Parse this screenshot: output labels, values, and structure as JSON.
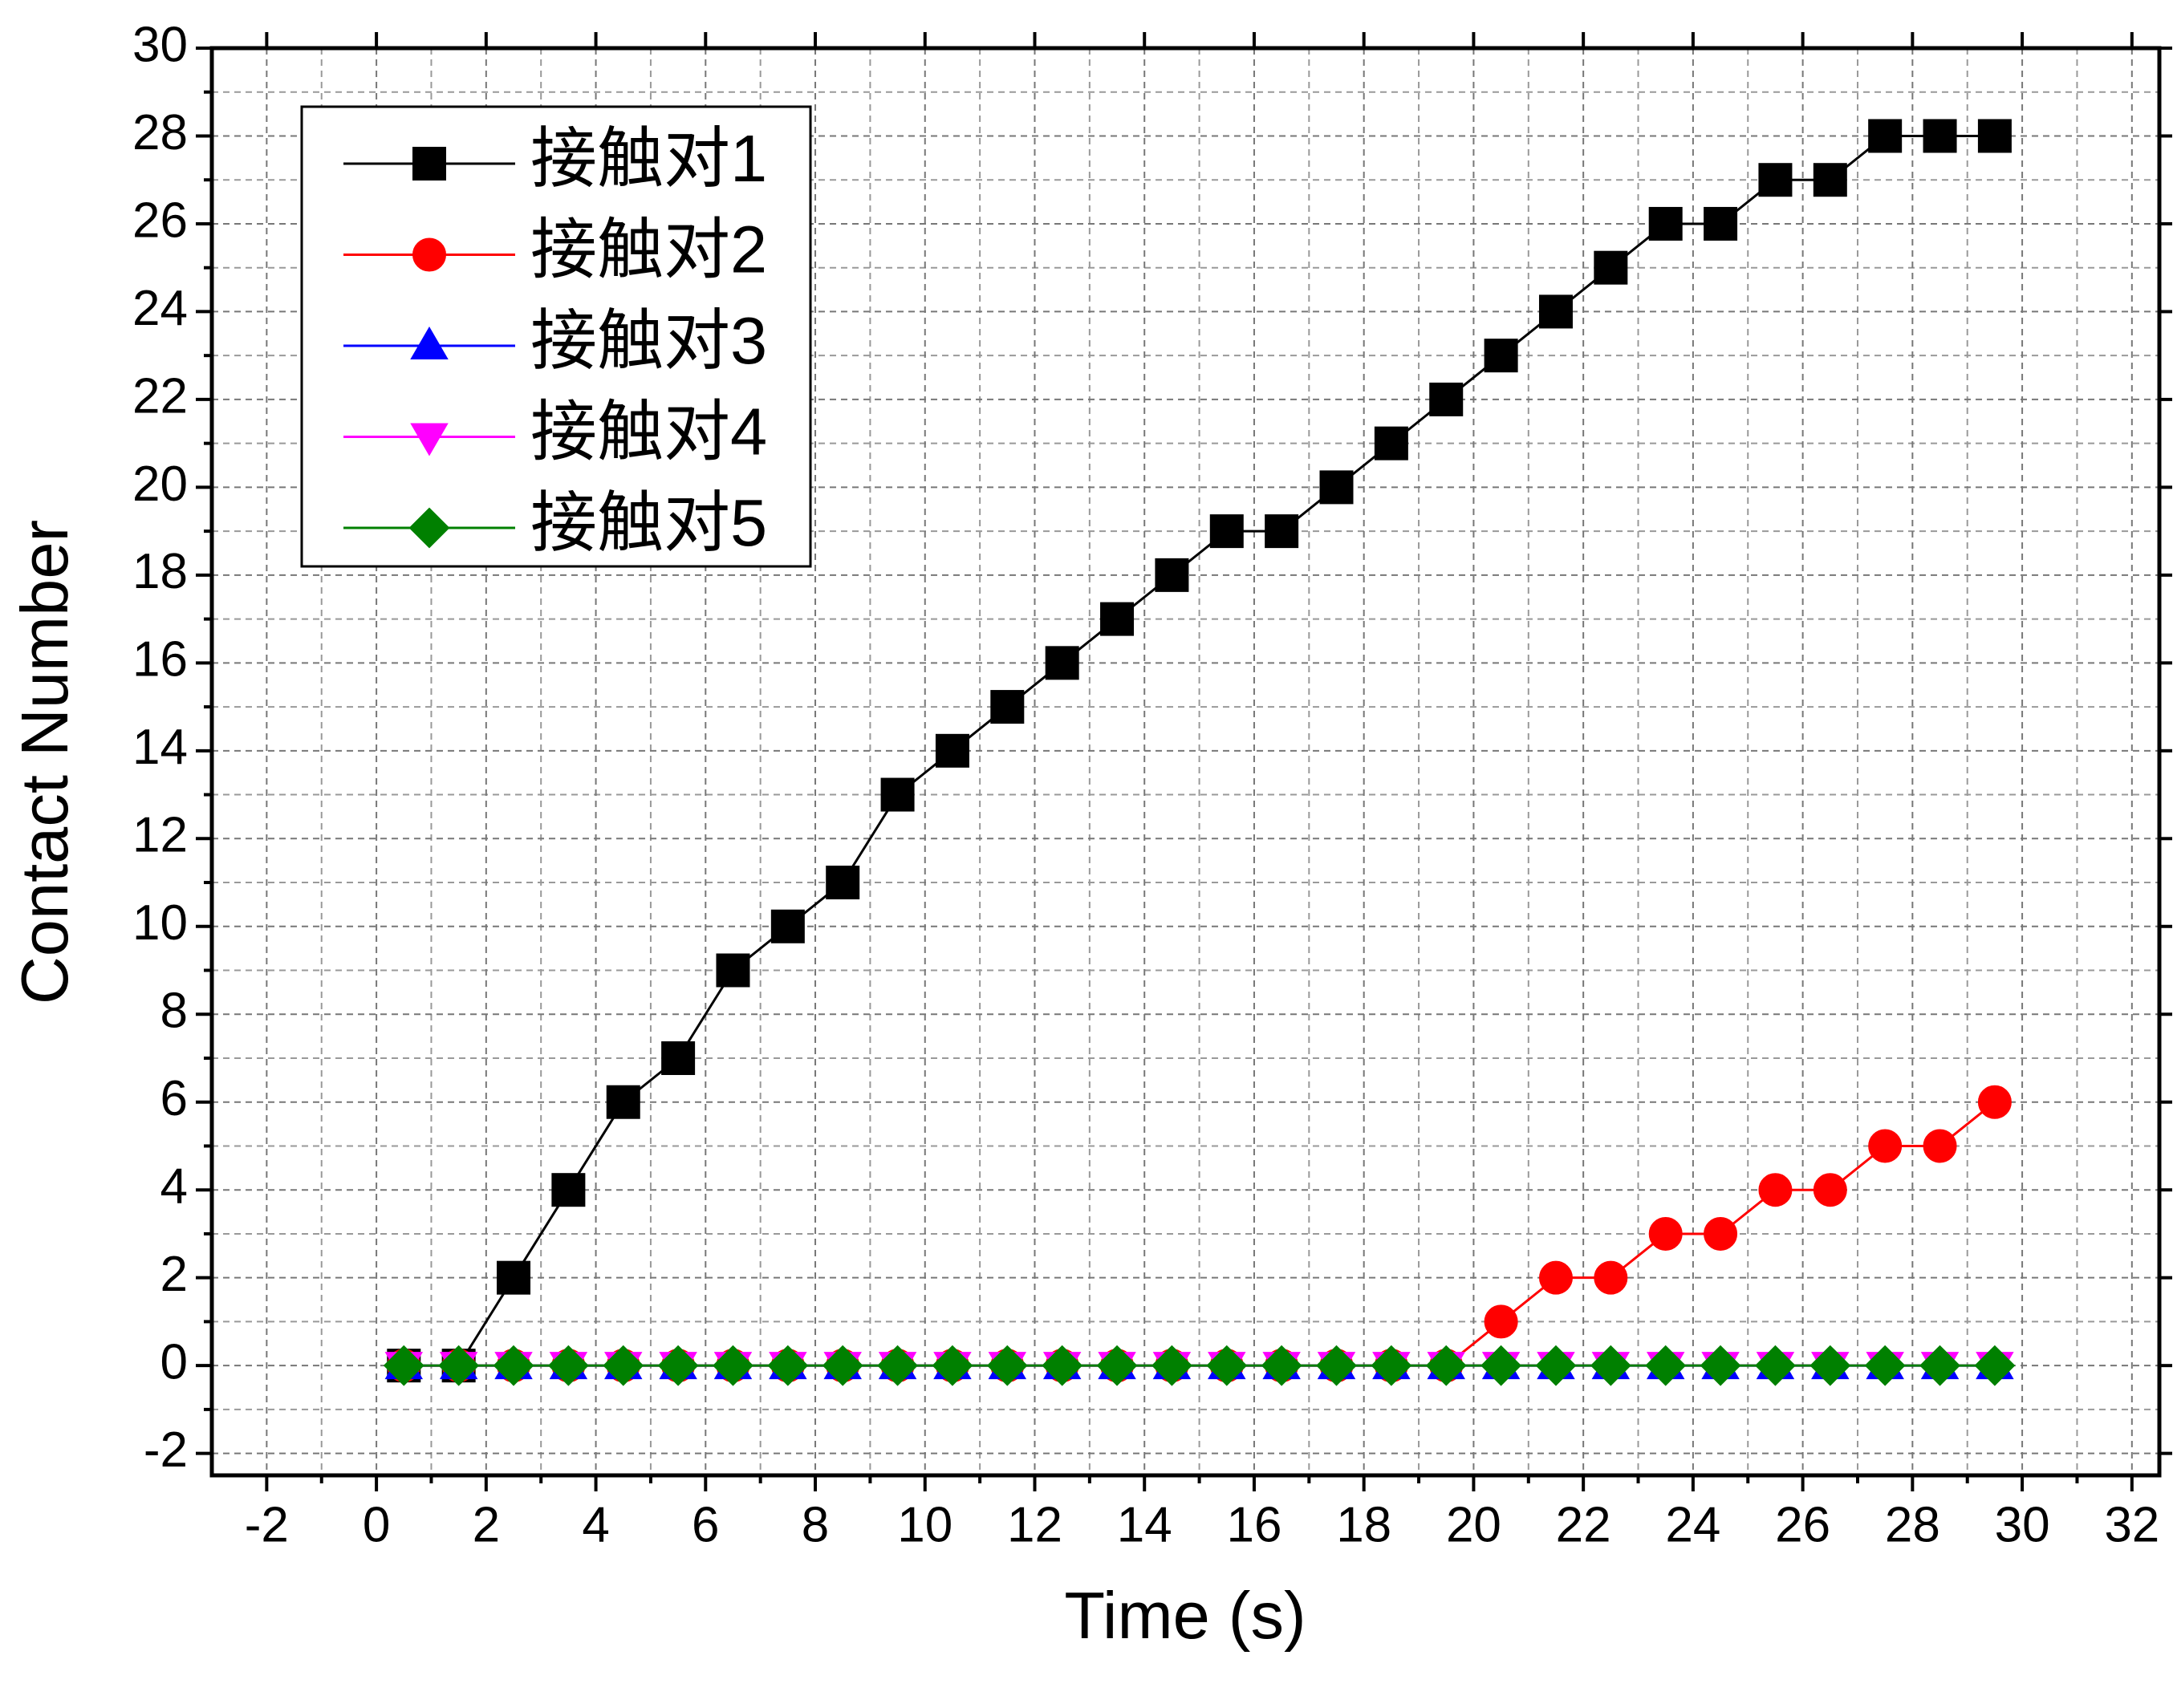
{
  "chart_data": {
    "type": "line",
    "xlabel": "Time (s)",
    "ylabel": "Contact Number",
    "x": [
      0.5,
      1.5,
      2.5,
      3.5,
      4.5,
      5.5,
      6.5,
      7.5,
      8.5,
      9.5,
      10.5,
      11.5,
      12.5,
      13.5,
      14.5,
      15.5,
      16.5,
      17.5,
      18.5,
      19.5,
      20.5,
      21.5,
      22.5,
      23.5,
      24.5,
      25.5,
      26.5,
      27.5,
      28.5,
      29.5
    ],
    "series": [
      {
        "name": "接触对1",
        "color": "#000000",
        "marker": "square",
        "values": [
          0,
          0,
          2,
          4,
          6,
          7,
          9,
          10,
          11,
          13,
          14,
          15,
          16,
          17,
          18,
          19,
          19,
          20,
          21,
          22,
          23,
          24,
          25,
          26,
          26,
          27,
          27,
          28,
          28,
          28
        ]
      },
      {
        "name": "接触对2",
        "color": "#ff0000",
        "marker": "circle",
        "values": [
          0,
          0,
          0,
          0,
          0,
          0,
          0,
          0,
          0,
          0,
          0,
          0,
          0,
          0,
          0,
          0,
          0,
          0,
          0,
          0,
          1,
          2,
          2,
          3,
          3,
          4,
          4,
          5,
          5,
          6
        ]
      },
      {
        "name": "接触对3",
        "color": "#0000ff",
        "marker": "triangle-up",
        "values": [
          0,
          0,
          0,
          0,
          0,
          0,
          0,
          0,
          0,
          0,
          0,
          0,
          0,
          0,
          0,
          0,
          0,
          0,
          0,
          0,
          0,
          0,
          0,
          0,
          0,
          0,
          0,
          0,
          0,
          0
        ]
      },
      {
        "name": "接触对4",
        "color": "#ff00ff",
        "marker": "triangle-down",
        "values": [
          0,
          0,
          0,
          0,
          0,
          0,
          0,
          0,
          0,
          0,
          0,
          0,
          0,
          0,
          0,
          0,
          0,
          0,
          0,
          0,
          0,
          0,
          0,
          0,
          0,
          0,
          0,
          0,
          0,
          0
        ]
      },
      {
        "name": "接触对5",
        "color": "#008000",
        "marker": "diamond",
        "values": [
          0,
          0,
          0,
          0,
          0,
          0,
          0,
          0,
          0,
          0,
          0,
          0,
          0,
          0,
          0,
          0,
          0,
          0,
          0,
          0,
          0,
          0,
          0,
          0,
          0,
          0,
          0,
          0,
          0,
          0
        ]
      }
    ],
    "xlim": [
      -3,
      32.5
    ],
    "xticks": [
      -2,
      0,
      2,
      4,
      6,
      8,
      10,
      12,
      14,
      16,
      18,
      20,
      22,
      24,
      26,
      28,
      30,
      32
    ],
    "ylim": [
      -2.5,
      30
    ],
    "yticks": [
      -2,
      0,
      2,
      4,
      6,
      8,
      10,
      12,
      14,
      16,
      18,
      20,
      22,
      24,
      26,
      28,
      30
    ],
    "grid": true,
    "legend": "upper left"
  }
}
